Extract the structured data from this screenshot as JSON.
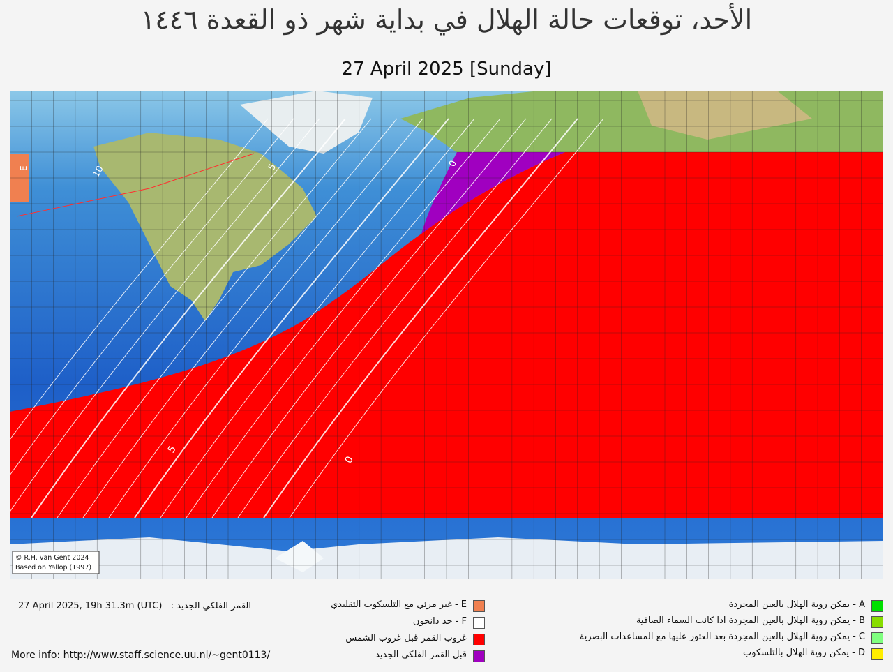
{
  "title": "الأحد، توقعات حالة الهلال في بداية شهر ذو القعدة ١٤٤٦",
  "subtitle": "27 April 2025 [Sunday]",
  "map": {
    "credit": [
      "© R.H. van Gent 2024",
      "Based on Yallop (1997)"
    ],
    "contour_labels": [
      "10",
      "5",
      "5",
      "0",
      "0",
      "E"
    ]
  },
  "footer": {
    "conjunction_label": "القمر الفلكي الجديد :",
    "conjunction_time": "27 April 2025, 19h 31.3m (UTC)",
    "more_info": "More info: http://www.staff.science.uu.nl/~gent0113/"
  },
  "legend_right": [
    {
      "label": "A - يمكن روية الهلال بالعين المجردة",
      "color": "#00e000"
    },
    {
      "label": "B - يمكن روية الهلال بالعين المجردة اذا كانت السماء الصافية",
      "color": "#88dd00"
    },
    {
      "label": "C - يمكن روية الهلال بالعين المجردة بعد العثور عليها مع المساعدات البصرية",
      "color": "#80ff80"
    },
    {
      "label": "D - يمكن روية الهلال بالتلسكوب",
      "color": "#ffee00"
    }
  ],
  "legend_middle": [
    {
      "label": "E - غير مرئي مع التلسكوب التقليدي",
      "color": "#f08050"
    },
    {
      "label": "F - حد دانجون",
      "color": "#ffffff"
    },
    {
      "label": "غروب القمر قبل غروب الشمس",
      "color": "#ff0000"
    },
    {
      "label": "قبل القمر  الفلكي الجديد",
      "color": "#a000c0"
    }
  ]
}
